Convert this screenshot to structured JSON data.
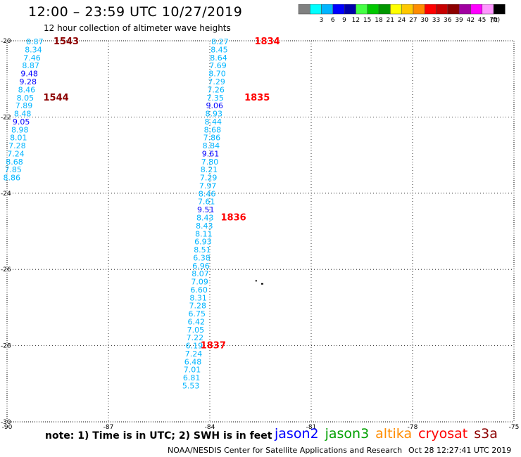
{
  "header": {
    "title": "12:00 – 23:59 UTC 10/27/2019",
    "subtitle": "12 hour collection of altimeter wave heights"
  },
  "colorbar": {
    "unit": "(ft)",
    "bins": [
      {
        "label": "",
        "color": "#808080"
      },
      {
        "label": "3",
        "color": "#00ffff"
      },
      {
        "label": "6",
        "color": "#00b4ff"
      },
      {
        "label": "9",
        "color": "#0000ff"
      },
      {
        "label": "12",
        "color": "#0000aa"
      },
      {
        "label": "15",
        "color": "#44ff44"
      },
      {
        "label": "18",
        "color": "#00c800"
      },
      {
        "label": "21",
        "color": "#009600"
      },
      {
        "label": "24",
        "color": "#ffff00"
      },
      {
        "label": "27",
        "color": "#ffc800"
      },
      {
        "label": "30",
        "color": "#ff8c00"
      },
      {
        "label": "33",
        "color": "#ff0000"
      },
      {
        "label": "36",
        "color": "#c80000"
      },
      {
        "label": "39",
        "color": "#8c0000"
      },
      {
        "label": "42",
        "color": "#a000a0"
      },
      {
        "label": "45",
        "color": "#ff00ff"
      },
      {
        "label": "70",
        "color": "#ff96ff"
      },
      {
        "label": "",
        "color": "#000000"
      }
    ]
  },
  "map": {
    "lon_ticks": [
      "-90",
      "-87",
      "-84",
      "-81",
      "-78",
      "-75"
    ],
    "lat_ticks": [
      "-20",
      "-22",
      "-24",
      "-26",
      "-28",
      "-30"
    ],
    "lon_range": [
      -90,
      -75
    ],
    "lat_range": [
      -30,
      -20
    ],
    "grid": "dotted"
  },
  "tracks": [
    {
      "values": [
        {
          "v": "8.87",
          "lat": -20.02,
          "lon": -89.18,
          "c": "#00b4ff"
        },
        {
          "v": "8.34",
          "lat": -20.23,
          "lon": -89.22,
          "c": "#00b4ff"
        },
        {
          "v": "7.46",
          "lat": -20.44,
          "lon": -89.26,
          "c": "#00b4ff"
        },
        {
          "v": "8.87",
          "lat": -20.65,
          "lon": -89.3,
          "c": "#00b4ff"
        },
        {
          "v": "9.48",
          "lat": -20.86,
          "lon": -89.34,
          "c": "#0000ff"
        },
        {
          "v": "9.28",
          "lat": -21.07,
          "lon": -89.38,
          "c": "#0000ff"
        },
        {
          "v": "8.46",
          "lat": -21.28,
          "lon": -89.42,
          "c": "#00b4ff"
        },
        {
          "v": "8.05",
          "lat": -21.49,
          "lon": -89.46,
          "c": "#00b4ff"
        },
        {
          "v": "7.89",
          "lat": -21.7,
          "lon": -89.5,
          "c": "#00b4ff"
        },
        {
          "v": "8.48",
          "lat": -21.91,
          "lon": -89.54,
          "c": "#00b4ff"
        },
        {
          "v": "9.05",
          "lat": -22.12,
          "lon": -89.58,
          "c": "#0000ff"
        },
        {
          "v": "8.98",
          "lat": -22.33,
          "lon": -89.62,
          "c": "#00b4ff"
        },
        {
          "v": "8.01",
          "lat": -22.54,
          "lon": -89.66,
          "c": "#00b4ff"
        },
        {
          "v": "7.28",
          "lat": -22.75,
          "lon": -89.7,
          "c": "#00b4ff"
        },
        {
          "v": "7.24",
          "lat": -22.96,
          "lon": -89.74,
          "c": "#00b4ff"
        },
        {
          "v": "8.68",
          "lat": -23.17,
          "lon": -89.78,
          "c": "#00b4ff"
        },
        {
          "v": "7.85",
          "lat": -23.38,
          "lon": -89.82,
          "c": "#00b4ff"
        },
        {
          "v": "8.86",
          "lat": -23.59,
          "lon": -89.86,
          "c": "#00b4ff"
        }
      ]
    },
    {
      "values": [
        {
          "v": "8.27",
          "lat": -20.02,
          "lon": -83.7,
          "c": "#00b4ff"
        },
        {
          "v": "8.45",
          "lat": -20.23,
          "lon": -83.72,
          "c": "#00b4ff"
        },
        {
          "v": "8.64",
          "lat": -20.44,
          "lon": -83.74,
          "c": "#00b4ff"
        },
        {
          "v": "7.69",
          "lat": -20.65,
          "lon": -83.76,
          "c": "#00b4ff"
        },
        {
          "v": "8.70",
          "lat": -20.86,
          "lon": -83.78,
          "c": "#00b4ff"
        },
        {
          "v": "7.29",
          "lat": -21.07,
          "lon": -83.8,
          "c": "#00b4ff"
        },
        {
          "v": "7.26",
          "lat": -21.28,
          "lon": -83.82,
          "c": "#00b4ff"
        },
        {
          "v": "7.35",
          "lat": -21.49,
          "lon": -83.84,
          "c": "#00b4ff"
        },
        {
          "v": "9.06",
          "lat": -21.7,
          "lon": -83.86,
          "c": "#0000ff"
        },
        {
          "v": "8.93",
          "lat": -21.91,
          "lon": -83.88,
          "c": "#00b4ff"
        },
        {
          "v": "8.44",
          "lat": -22.12,
          "lon": -83.9,
          "c": "#00b4ff"
        },
        {
          "v": "8.68",
          "lat": -22.33,
          "lon": -83.92,
          "c": "#00b4ff"
        },
        {
          "v": "7.86",
          "lat": -22.54,
          "lon": -83.94,
          "c": "#00b4ff"
        },
        {
          "v": "8.84",
          "lat": -22.75,
          "lon": -83.96,
          "c": "#00b4ff"
        },
        {
          "v": "9.61",
          "lat": -22.96,
          "lon": -83.98,
          "c": "#0000ff"
        },
        {
          "v": "7.80",
          "lat": -23.17,
          "lon": -84.0,
          "c": "#00b4ff"
        },
        {
          "v": "8.21",
          "lat": -23.38,
          "lon": -84.02,
          "c": "#00b4ff"
        },
        {
          "v": "7.29",
          "lat": -23.59,
          "lon": -84.04,
          "c": "#00b4ff"
        },
        {
          "v": "7.97",
          "lat": -23.8,
          "lon": -84.06,
          "c": "#00b4ff"
        },
        {
          "v": "8.46",
          "lat": -24.01,
          "lon": -84.08,
          "c": "#00b4ff"
        },
        {
          "v": "7.61",
          "lat": -24.22,
          "lon": -84.1,
          "c": "#00b4ff"
        },
        {
          "v": "9.51",
          "lat": -24.43,
          "lon": -84.12,
          "c": "#0000ff"
        },
        {
          "v": "8.43",
          "lat": -24.64,
          "lon": -84.14,
          "c": "#00b4ff"
        },
        {
          "v": "8.43",
          "lat": -24.85,
          "lon": -84.16,
          "c": "#00b4ff"
        },
        {
          "v": "8.11",
          "lat": -25.06,
          "lon": -84.18,
          "c": "#00b4ff"
        },
        {
          "v": "6.93",
          "lat": -25.27,
          "lon": -84.2,
          "c": "#00b4ff"
        },
        {
          "v": "8.51",
          "lat": -25.48,
          "lon": -84.22,
          "c": "#00b4ff"
        },
        {
          "v": "6.38",
          "lat": -25.69,
          "lon": -84.24,
          "c": "#00b4ff"
        },
        {
          "v": "6.96",
          "lat": -25.9,
          "lon": -84.26,
          "c": "#00b4ff"
        },
        {
          "v": "8.07",
          "lat": -26.11,
          "lon": -84.28,
          "c": "#00b4ff"
        },
        {
          "v": "7.09",
          "lat": -26.32,
          "lon": -84.3,
          "c": "#00b4ff"
        },
        {
          "v": "6.60",
          "lat": -26.53,
          "lon": -84.32,
          "c": "#00b4ff"
        },
        {
          "v": "8.31",
          "lat": -26.74,
          "lon": -84.34,
          "c": "#00b4ff"
        },
        {
          "v": "7.28",
          "lat": -26.95,
          "lon": -84.36,
          "c": "#00b4ff"
        },
        {
          "v": "6.75",
          "lat": -27.16,
          "lon": -84.38,
          "c": "#00b4ff"
        },
        {
          "v": "6.42",
          "lat": -27.37,
          "lon": -84.4,
          "c": "#00b4ff"
        },
        {
          "v": "7.05",
          "lat": -27.58,
          "lon": -84.42,
          "c": "#00b4ff"
        },
        {
          "v": "7.22",
          "lat": -27.79,
          "lon": -84.44,
          "c": "#00b4ff"
        },
        {
          "v": "6.19",
          "lat": -28.0,
          "lon": -84.46,
          "c": "#00b4ff"
        },
        {
          "v": "7.24",
          "lat": -28.21,
          "lon": -84.48,
          "c": "#00b4ff"
        },
        {
          "v": "6.48",
          "lat": -28.42,
          "lon": -84.5,
          "c": "#00b4ff"
        },
        {
          "v": "7.01",
          "lat": -28.63,
          "lon": -84.52,
          "c": "#00b4ff"
        },
        {
          "v": "6.81",
          "lat": -28.84,
          "lon": -84.54,
          "c": "#00b4ff"
        },
        {
          "v": "5.53",
          "lat": -29.05,
          "lon": -84.56,
          "c": "#00b4ff"
        }
      ]
    }
  ],
  "time_labels": [
    {
      "t": "1543",
      "lat": -20.02,
      "lon": -88.25,
      "c": "#8c0000"
    },
    {
      "t": "1544",
      "lat": -21.49,
      "lon": -88.55,
      "c": "#8c0000"
    },
    {
      "t": "1834",
      "lat": -20.02,
      "lon": -82.3,
      "c": "#ff0000"
    },
    {
      "t": "1835",
      "lat": -21.49,
      "lon": -82.6,
      "c": "#ff0000"
    },
    {
      "t": "1836",
      "lat": -24.64,
      "lon": -83.3,
      "c": "#ff0000"
    },
    {
      "t": "1837",
      "lat": -28.0,
      "lon": -83.9,
      "c": "#ff0000"
    }
  ],
  "footer": {
    "note": "note:  1) Time is in UTC;  2) SWH is in feet",
    "legend": [
      {
        "name": "jason2",
        "color": "#0000ff"
      },
      {
        "name": "jason3",
        "color": "#00a000"
      },
      {
        "name": "altika",
        "color": "#ff8c00"
      },
      {
        "name": "cryosat",
        "color": "#ff0000"
      },
      {
        "name": "s3a",
        "color": "#8c0000"
      }
    ],
    "credit": "NOAA/NESDIS Center for Satellite Applications and Research",
    "stamp": "Oct 28 12:27:41 UTC 2019"
  }
}
